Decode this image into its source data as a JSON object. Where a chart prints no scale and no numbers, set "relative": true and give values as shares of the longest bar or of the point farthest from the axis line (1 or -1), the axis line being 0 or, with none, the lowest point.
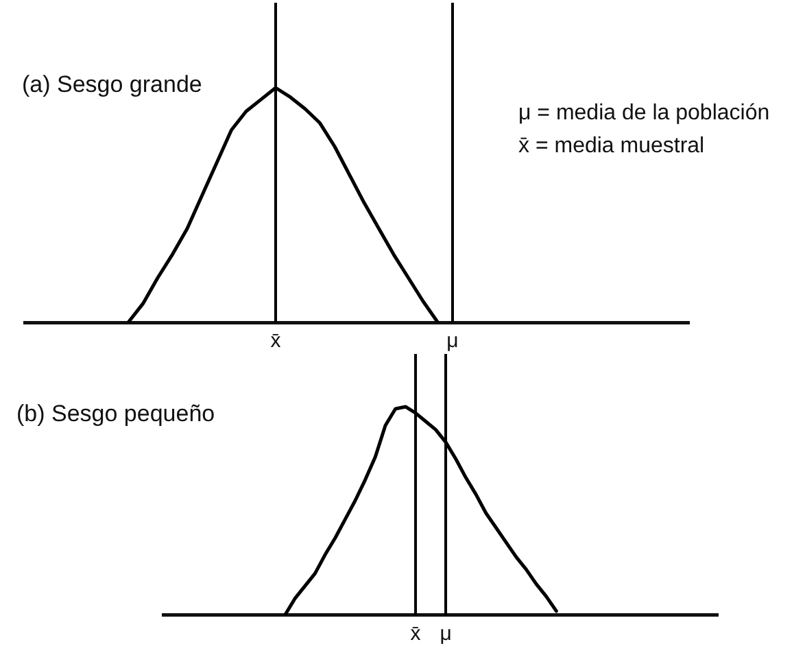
{
  "chart_data": [
    {
      "type": "line",
      "title": "(a) Sesgo grande",
      "relative": true,
      "color": "#000000",
      "categories": [
        null,
        null,
        null,
        null,
        null,
        null,
        null,
        null,
        null,
        null,
        null,
        null,
        null,
        null,
        null,
        null,
        null,
        "x̄",
        null,
        null,
        null,
        null,
        null,
        null,
        null,
        null,
        null,
        null,
        null,
        "μ",
        null,
        null,
        null,
        null,
        null,
        null,
        null,
        null,
        null,
        null,
        null,
        null,
        null,
        null,
        null,
        null
      ],
      "values": [
        null,
        null,
        null,
        null,
        null,
        null,
        null,
        0,
        0.08,
        0.19,
        0.29,
        0.4,
        0.54,
        0.68,
        0.82,
        0.9,
        0.95,
        1,
        0.96,
        0.91,
        0.85,
        0.75,
        0.63,
        0.51,
        0.4,
        0.29,
        0.19,
        0.09,
        0,
        null,
        null,
        null,
        null,
        null,
        null,
        null,
        null,
        null,
        null,
        null,
        null,
        null,
        null,
        null,
        null,
        null
      ],
      "ref_lines": [
        {
          "axis": "x",
          "value": "x̄",
          "color": "#000000"
        },
        {
          "axis": "x",
          "value": "μ",
          "color": "#000000"
        }
      ],
      "annotations": [
        "μ = media de la población",
        "x̄ = media muestral"
      ]
    },
    {
      "type": "line",
      "title": "(b) Sesgo pequeño",
      "relative": true,
      "color": "#000000",
      "categories": [
        null,
        null,
        null,
        null,
        null,
        null,
        null,
        null,
        null,
        null,
        null,
        null,
        null,
        null,
        null,
        null,
        null,
        null,
        null,
        null,
        null,
        null,
        null,
        null,
        null,
        "x̄",
        null,
        null,
        "μ",
        null,
        null,
        null,
        null,
        null,
        null,
        null,
        null,
        null,
        null,
        null,
        null,
        null,
        null,
        null,
        null,
        null,
        null,
        null,
        null,
        null,
        null,
        null,
        null,
        null,
        null,
        null
      ],
      "values": [
        null,
        null,
        null,
        null,
        null,
        null,
        null,
        null,
        null,
        null,
        null,
        null,
        0,
        0.08,
        0.14,
        0.2,
        0.29,
        0.37,
        0.46,
        0.55,
        0.65,
        0.76,
        0.91,
        0.99,
        1,
        0.97,
        0.93,
        0.89,
        0.83,
        0.75,
        0.66,
        0.58,
        0.49,
        0.42,
        0.35,
        0.28,
        0.22,
        0.15,
        0.09,
        0.02,
        null,
        null,
        null,
        null,
        null,
        null,
        null,
        null,
        null,
        null,
        null,
        null,
        null,
        null,
        null,
        null
      ],
      "ref_lines": [
        {
          "axis": "x",
          "value": "x̄",
          "color": "#000000"
        },
        {
          "axis": "x",
          "value": "μ",
          "color": "#000000"
        }
      ]
    }
  ]
}
